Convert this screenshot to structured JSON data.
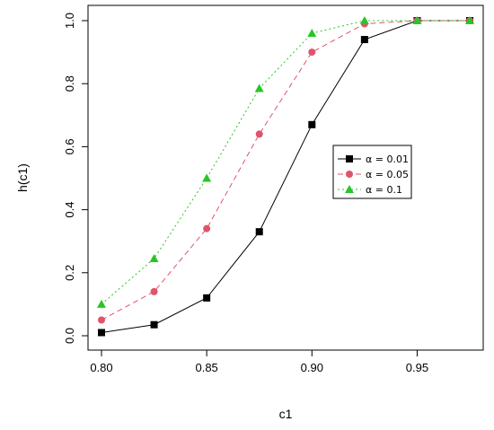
{
  "chart_data": {
    "type": "line",
    "title": "",
    "xlabel": "c1",
    "ylabel": "h(c1)",
    "xlim": [
      0.8,
      0.975
    ],
    "ylim": [
      0.0,
      1.0
    ],
    "x_ticks": [
      "0.80",
      "0.85",
      "0.90",
      "0.95"
    ],
    "y_ticks": [
      "0.0",
      "0.2",
      "0.4",
      "0.6",
      "0.8",
      "1.0"
    ],
    "grid": false,
    "legend_position": "center-right",
    "x": [
      0.8,
      0.825,
      0.85,
      0.875,
      0.9,
      0.925,
      0.95,
      0.975
    ],
    "series": [
      {
        "name": "α = 0.01",
        "color": "#000000",
        "marker": "square",
        "line_style": "solid",
        "values": [
          0.01,
          0.035,
          0.12,
          0.33,
          0.67,
          0.94,
          1.0,
          1.0
        ]
      },
      {
        "name": "α = 0.05",
        "color": "#DF536B",
        "marker": "circle",
        "line_style": "dashed",
        "values": [
          0.05,
          0.14,
          0.34,
          0.64,
          0.9,
          0.99,
          1.0,
          1.0
        ]
      },
      {
        "name": "α = 0.1",
        "color": "#27C627",
        "marker": "triangle",
        "line_style": "dotted",
        "values": [
          0.1,
          0.245,
          0.5,
          0.785,
          0.96,
          1.0,
          1.0,
          1.0
        ]
      }
    ]
  }
}
